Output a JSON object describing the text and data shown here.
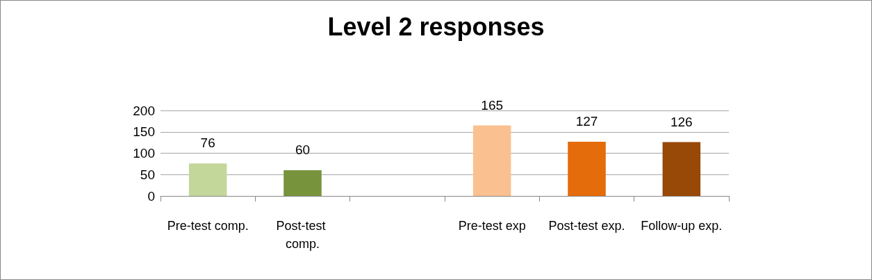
{
  "chart_data": {
    "type": "bar",
    "title": "Level 2 responses",
    "categories": [
      "Pre-test comp.",
      "Post-test comp.",
      null,
      "Pre-test exp",
      "Post-test exp.",
      "Follow-up exp."
    ],
    "values": [
      76,
      60,
      null,
      165,
      127,
      126
    ],
    "colors": [
      "#c4d79b",
      "#77933c",
      "#ffffff",
      "#fac090",
      "#e46c0a",
      "#984807"
    ],
    "ylim": [
      0,
      200
    ],
    "yticks": [
      0,
      50,
      100,
      150,
      200
    ],
    "grid": "y",
    "data_labels": true
  }
}
